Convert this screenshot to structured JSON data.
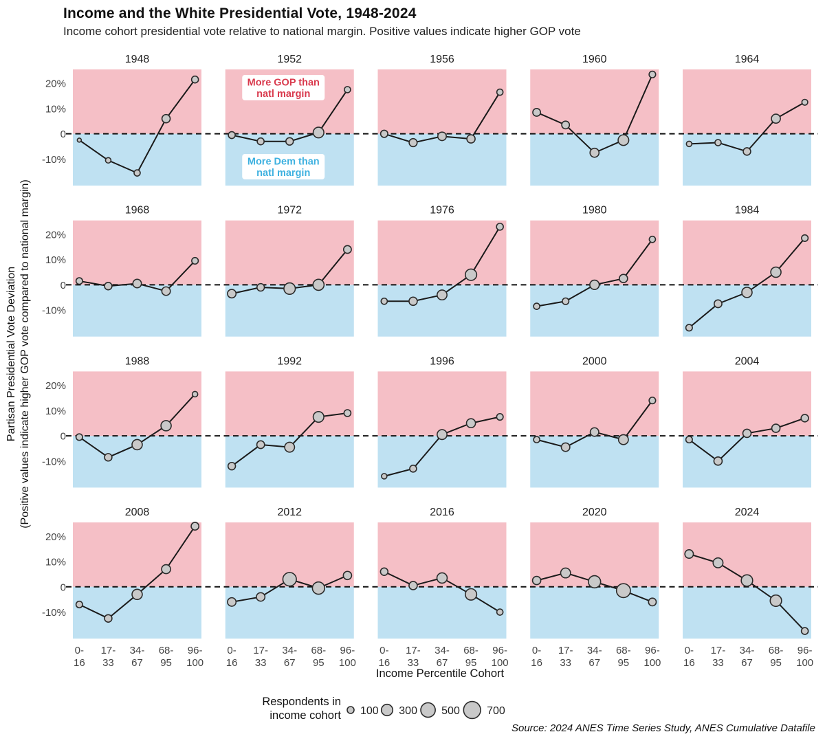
{
  "header": {
    "title": "Income and the White Presidential Vote, 1948-2024",
    "subtitle": "Income cohort presidential vote relative to national margin. Positive values indicate higher GOP vote"
  },
  "y_axis": {
    "label_line1": "Partisan Presidential Vote Deviation",
    "label_line2": "(Positive values indicate higher GOP vote compared to national margin)"
  },
  "x_axis": {
    "title": "Income Percentile Cohort"
  },
  "annotations": {
    "gop_line1": "More GOP than",
    "gop_line2": "natl margin",
    "dem_line1": "More Dem than",
    "dem_line2": "natl margin"
  },
  "legend": {
    "label_line1": "Respondents in",
    "label_line2": "income cohort",
    "sizes": [
      100,
      300,
      500,
      700
    ]
  },
  "source": "Source: 2024 ANES Time Series Study, ANES Cumulative Datafile",
  "colors": {
    "gop_band": "#f5bfc6",
    "dem_band": "#bfe1f2",
    "gop_text": "#d93a4d",
    "dem_text": "#3eb1e0",
    "line": "#1a1a1a",
    "point_fill": "#c9c9c9",
    "point_stroke": "#2b2b2b",
    "zero_line": "#111111",
    "tick_text": "#444444",
    "year_text": "#222222"
  },
  "chart_data": {
    "type": "line",
    "small_multiples": "4 rows x 5 cols",
    "categories": [
      "0-16",
      "17-33",
      "34-67",
      "68-95",
      "96-100"
    ],
    "category_tick_lines": [
      [
        "0-",
        "16"
      ],
      [
        "17-",
        "33"
      ],
      [
        "34-",
        "67"
      ],
      [
        "68-",
        "95"
      ],
      [
        "96-",
        "100"
      ]
    ],
    "xlabel": "Income Percentile Cohort",
    "ylabel": "Partisan Presidential Vote Deviation",
    "y_ticks": [
      {
        "value": 20,
        "label": "20%"
      },
      {
        "value": 10,
        "label": "10%"
      },
      {
        "value": 0,
        "label": "0"
      },
      {
        "value": -10,
        "label": "-10%"
      }
    ],
    "ylim": [
      -20.5,
      25.5
    ],
    "grid": false,
    "legend_position": "bottom",
    "panels": [
      {
        "year": "1948",
        "values": [
          -2.5,
          -10.5,
          -15.5,
          6,
          21.5
        ],
        "respondents": [
          30,
          60,
          80,
          150,
          100
        ]
      },
      {
        "year": "1952",
        "values": [
          -0.5,
          -3,
          -3,
          0.5,
          17.5
        ],
        "respondents": [
          100,
          100,
          120,
          260,
          80
        ]
      },
      {
        "year": "1956",
        "values": [
          0,
          -3.5,
          -1,
          -2,
          16.5
        ],
        "respondents": [
          110,
          140,
          160,
          150,
          80
        ]
      },
      {
        "year": "1960",
        "values": [
          8.5,
          3.5,
          -7.5,
          -2.5,
          23.5
        ],
        "respondents": [
          130,
          130,
          180,
          260,
          90
        ]
      },
      {
        "year": "1964",
        "values": [
          -4,
          -3.5,
          -7,
          6,
          12.5
        ],
        "respondents": [
          60,
          80,
          120,
          180,
          70
        ]
      },
      {
        "year": "1968",
        "values": [
          1.5,
          -0.5,
          0.5,
          -2.5,
          9.5
        ],
        "respondents": [
          90,
          120,
          160,
          160,
          90
        ]
      },
      {
        "year": "1972",
        "values": [
          -3.5,
          -1,
          -1.5,
          0,
          14
        ],
        "respondents": [
          160,
          120,
          300,
          280,
          130
        ]
      },
      {
        "year": "1976",
        "values": [
          -6.5,
          -6.5,
          -4,
          4,
          23
        ],
        "respondents": [
          80,
          150,
          220,
          300,
          100
        ]
      },
      {
        "year": "1980",
        "values": [
          -8.5,
          -6.5,
          0,
          2.5,
          18
        ],
        "respondents": [
          80,
          90,
          200,
          150,
          80
        ]
      },
      {
        "year": "1984",
        "values": [
          -17,
          -7.5,
          -3,
          5,
          18.5
        ],
        "respondents": [
          90,
          130,
          240,
          240,
          90
        ]
      },
      {
        "year": "1988",
        "values": [
          -0.5,
          -8.5,
          -3.5,
          4,
          16.5
        ],
        "respondents": [
          90,
          120,
          240,
          240,
          60
        ]
      },
      {
        "year": "1992",
        "values": [
          -12,
          -3.5,
          -4.5,
          7.5,
          9
        ],
        "respondents": [
          120,
          130,
          220,
          260,
          100
        ]
      },
      {
        "year": "1996",
        "values": [
          -16,
          -13,
          0.5,
          5,
          7.5
        ],
        "respondents": [
          60,
          100,
          220,
          180,
          90
        ]
      },
      {
        "year": "2000",
        "values": [
          -1.5,
          -4.5,
          1.5,
          -1.5,
          14
        ],
        "respondents": [
          80,
          160,
          160,
          220,
          90
        ]
      },
      {
        "year": "2004",
        "values": [
          -1.5,
          -10,
          1,
          3,
          7
        ],
        "respondents": [
          90,
          150,
          150,
          150,
          120
        ]
      },
      {
        "year": "2008",
        "values": [
          -7,
          -12.5,
          -3,
          7,
          24
        ],
        "respondents": [
          90,
          120,
          240,
          180,
          130
        ]
      },
      {
        "year": "2012",
        "values": [
          -6,
          -4,
          3,
          -0.5,
          4.5
        ],
        "respondents": [
          160,
          160,
          430,
          350,
          150
        ]
      },
      {
        "year": "2016",
        "values": [
          6,
          0.5,
          3.5,
          -3,
          -10
        ],
        "respondents": [
          120,
          150,
          240,
          300,
          80
        ]
      },
      {
        "year": "2020",
        "values": [
          2.5,
          5.5,
          2,
          -1.5,
          -6
        ],
        "respondents": [
          150,
          220,
          350,
          460,
          130
        ]
      },
      {
        "year": "2024",
        "values": [
          13,
          9.5,
          2.5,
          -5.5,
          -17.5
        ],
        "respondents": [
          160,
          220,
          300,
          300,
          100
        ]
      }
    ]
  }
}
